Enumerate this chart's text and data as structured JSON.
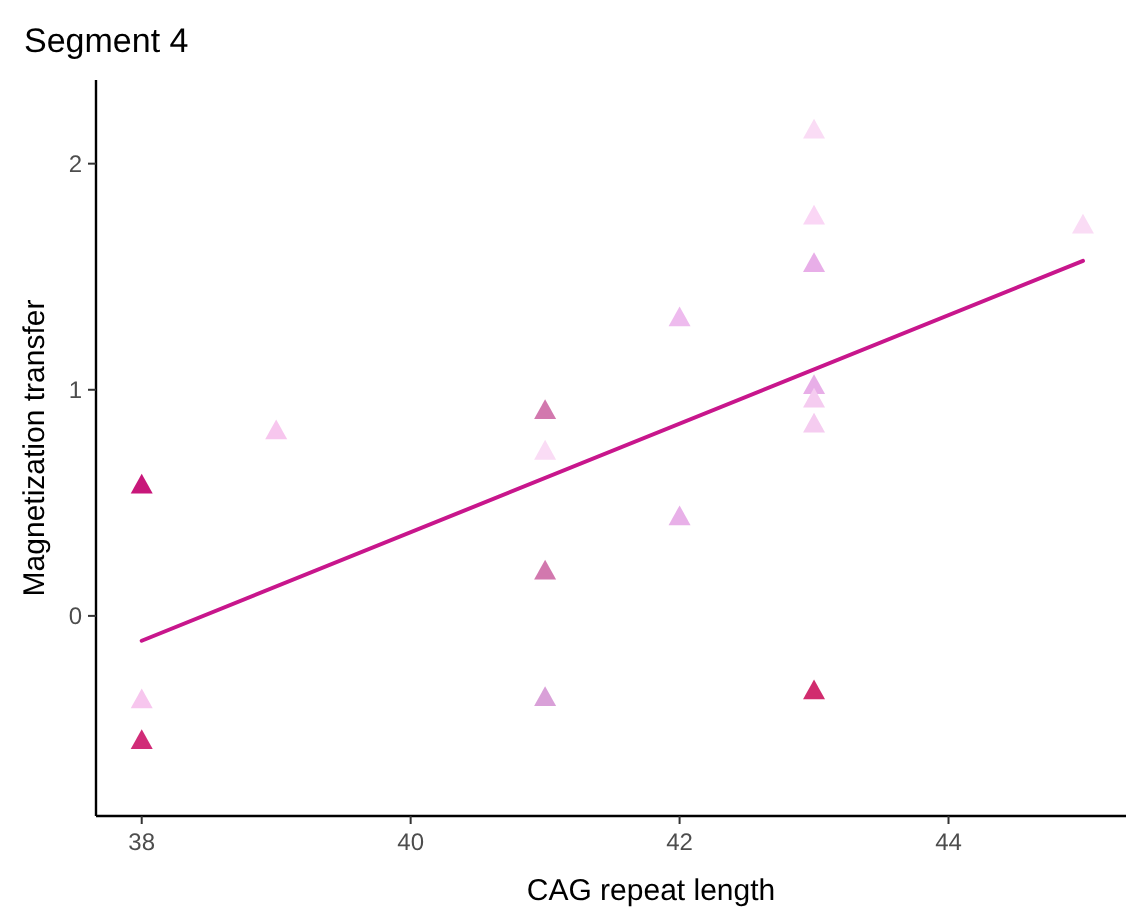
{
  "chart_data": {
    "type": "scatter",
    "title": "Segment 4",
    "xlabel": "CAG repeat length",
    "ylabel": "Magnetization transfer",
    "xlim": [
      37.66,
      45.32
    ],
    "ylim": [
      -0.885,
      2.37
    ],
    "xticks": [
      38,
      40,
      42,
      44
    ],
    "yticks": [
      0,
      1,
      2
    ],
    "grid": false,
    "marker": "triangle",
    "series": [
      {
        "x": [
          38,
          38,
          38,
          39,
          41,
          41,
          41,
          41,
          42,
          42,
          43,
          43,
          43,
          43,
          43,
          43,
          43,
          45
        ],
        "values": [
          0.58,
          -0.37,
          -0.55,
          0.82,
          0.91,
          0.73,
          0.2,
          -0.36,
          1.32,
          0.44,
          2.15,
          1.77,
          1.56,
          1.02,
          0.96,
          0.85,
          -0.33,
          1.73
        ],
        "colors": [
          "#c8177a",
          "#f7c6ee",
          "#d12c78",
          "#f7c6ee",
          "#d278ae",
          "#fadcf5",
          "#d278ae",
          "#d9a0d8",
          "#eebbee",
          "#e8b0e8",
          "#fadcf5",
          "#fad6f5",
          "#e8aee8",
          "#e8aee8",
          "#f5ccf0",
          "#f5ccf0",
          "#d12c6e",
          "#fadcf5"
        ]
      },
      {
        "type": "line",
        "x": [
          38,
          45
        ],
        "values": [
          -0.11,
          1.57
        ],
        "color": "#c8168c",
        "marker": "none"
      }
    ]
  }
}
